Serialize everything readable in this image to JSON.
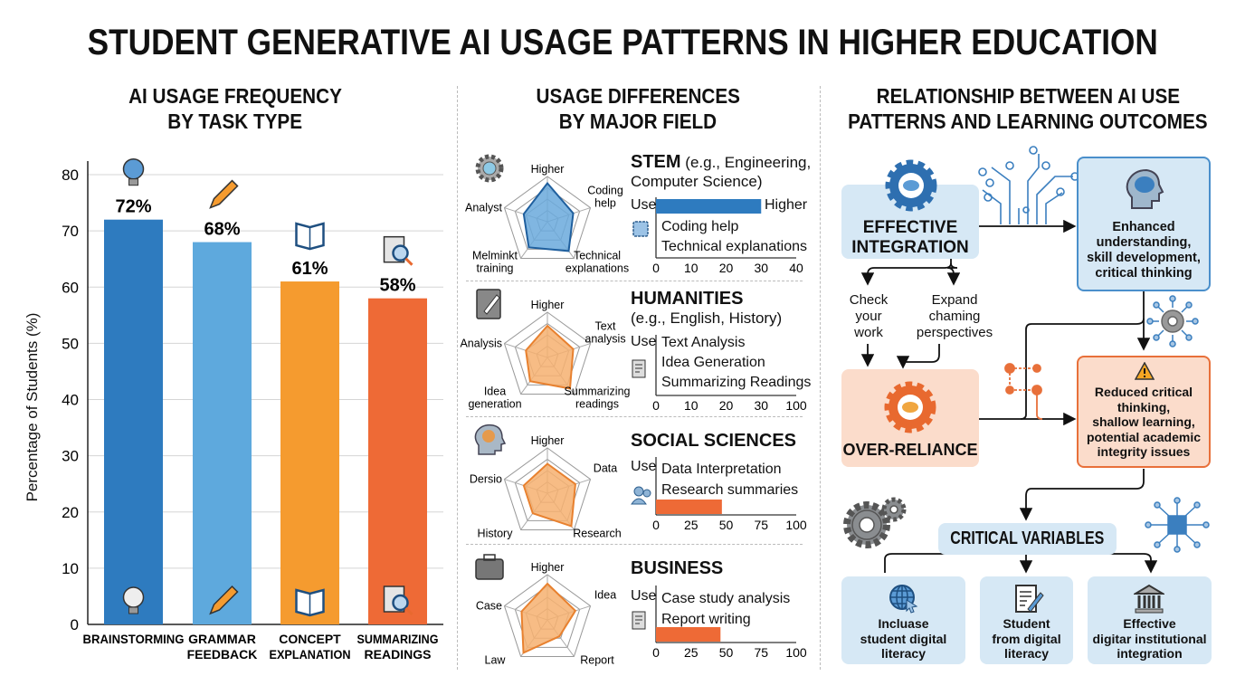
{
  "title": "STUDENT GENERATIVE AI USAGE PATTERNS IN HIGHER EDUCATION",
  "colors": {
    "blue": "#2e7bbf",
    "light_blue": "#5ea9dd",
    "orange": "#f59b2f",
    "red_orange": "#ee6a36",
    "box_blue": "#d6e8f5",
    "box_orange": "#fbdccb"
  },
  "panels": {
    "left_title": [
      "AI USAGE FREQUENCY",
      "BY TASK TYPE"
    ],
    "middle_title": [
      "USAGE DIFFERENCES",
      "BY MAJOR FIELD"
    ],
    "right_title": [
      "RELATIONSHIP BETWEEN AI USE",
      "PATTERNS AND LEARNING OUTCOMES"
    ]
  },
  "chart_data": [
    {
      "type": "bar",
      "title": "AI USAGE FREQUENCY BY TASK TYPE",
      "ylabel": "Percentage of Students (%)",
      "ylim": [
        0,
        80
      ],
      "yticks": [
        0,
        10,
        20,
        30,
        40,
        50,
        60,
        70,
        80
      ],
      "grid": true,
      "categories": [
        [
          "BRAINSTORMING"
        ],
        [
          "GRAMMAR",
          "FEEDBACK"
        ],
        [
          "CONCEPT",
          "EXPLANATION"
        ],
        [
          "SUMMARIZING",
          "READINGS"
        ]
      ],
      "values": [
        72,
        68,
        61,
        58
      ],
      "data_labels": [
        "72%",
        "68%",
        "61%",
        "58%"
      ],
      "bar_colors": [
        "#2e7bbf",
        "#5ea9dd",
        "#f59b2f",
        "#ee6a36"
      ],
      "icons": [
        "lightbulb-icon",
        "pencil-icon",
        "open-book-icon",
        "document-magnifier-icon"
      ]
    }
  ],
  "fields": [
    {
      "name": "STEM",
      "sub": " (e.g., Engineering,",
      "sub2": "Computer Science)",
      "icon": "gear-icon",
      "color": "#2e7bbf",
      "radar_labels": [
        "Higher",
        "Coding help",
        "Technical explanations",
        "Melminkt training",
        "Analyst"
      ],
      "radar_values": [
        0.85,
        0.6,
        0.8,
        0.7,
        0.55
      ],
      "use_label": "Use",
      "bar_end_label": "Higher",
      "uses": [
        "Coding help",
        "Technical explanations"
      ],
      "use_icon": "chip-icon",
      "bar_value": 30,
      "axis_ticks": [
        "0",
        "10",
        "20",
        "30",
        "40"
      ],
      "axis_max": 40
    },
    {
      "name": "HUMANITIES",
      "sub": "",
      "sub2": "(e.g., English, History)",
      "icon": "notebook-pencil-icon",
      "color": "#f59b2f",
      "radar_labels": [
        "Higher",
        "Text analysis",
        "Summarizing readings",
        "Idea generation",
        "Analysis"
      ],
      "radar_values": [
        0.7,
        0.6,
        0.85,
        0.65,
        0.5
      ],
      "use_label": "Use",
      "bar_end_label": "",
      "uses": [
        "Text Analysis",
        "Idea Generation",
        "Summarizing Readings"
      ],
      "use_icon": "document-pen-icon",
      "bar_value": null,
      "axis_ticks": [
        "0",
        "10",
        "20",
        "30",
        "100"
      ],
      "axis_max": 40
    },
    {
      "name": "SOCIAL SCIENCES",
      "sub": "",
      "sub2": "",
      "icon": "head-brain-icon",
      "color": "#f59b2f",
      "radar_labels": [
        "Higher",
        "Data",
        "Research",
        "History",
        "Dersio"
      ],
      "radar_values": [
        0.65,
        0.65,
        0.9,
        0.55,
        0.55
      ],
      "use_label": "Use",
      "bar_end_label": "",
      "uses": [
        "Data Interpretation",
        "Research summaries"
      ],
      "use_icon": "users-icon",
      "bar_value": 47,
      "axis_ticks": [
        "0",
        "25",
        "50",
        "75",
        "100"
      ],
      "axis_max": 100
    },
    {
      "name": "BUSINESS",
      "sub": "",
      "sub2": "",
      "icon": "briefcase-icon",
      "color": "#f59b2f",
      "radar_labels": [
        "Higher",
        "Idea",
        "Report",
        "Law",
        "Case"
      ],
      "radar_values": [
        0.8,
        0.65,
        0.45,
        0.9,
        0.6
      ],
      "use_label": "Use",
      "bar_end_label": "",
      "uses": [
        "Case study analysis",
        "Report writing"
      ],
      "use_icon": "document-pen-icon",
      "bar_value": 46,
      "axis_ticks": [
        "0",
        "25",
        "50",
        "75",
        "100"
      ],
      "axis_max": 100
    }
  ],
  "diagram": {
    "effective": [
      "EFFECTIVE",
      "INTEGRATION"
    ],
    "check": [
      "Check",
      "your",
      "work"
    ],
    "expand": [
      "Expand",
      "chaming",
      "perspectives"
    ],
    "over": "OVER-RELIANCE",
    "enhanced": [
      "Enhanced",
      "understanding,",
      "skill development,",
      "critical thinking"
    ],
    "reduced": [
      "Reduced critical",
      "thinking,",
      "shallow learning,",
      "potential academic",
      "integrity issues"
    ],
    "critical": "CRITICAL VARIABLES",
    "vars": [
      {
        "lines": [
          "Incluase",
          "student digital",
          "literacy"
        ],
        "icon": "globe-cursor-icon"
      },
      {
        "lines": [
          "Student",
          "from digital",
          "literacy"
        ],
        "icon": "document-pen-icon"
      },
      {
        "lines": [
          "Effective",
          "digitar institutional",
          "integration"
        ],
        "icon": "institution-icon"
      }
    ]
  }
}
